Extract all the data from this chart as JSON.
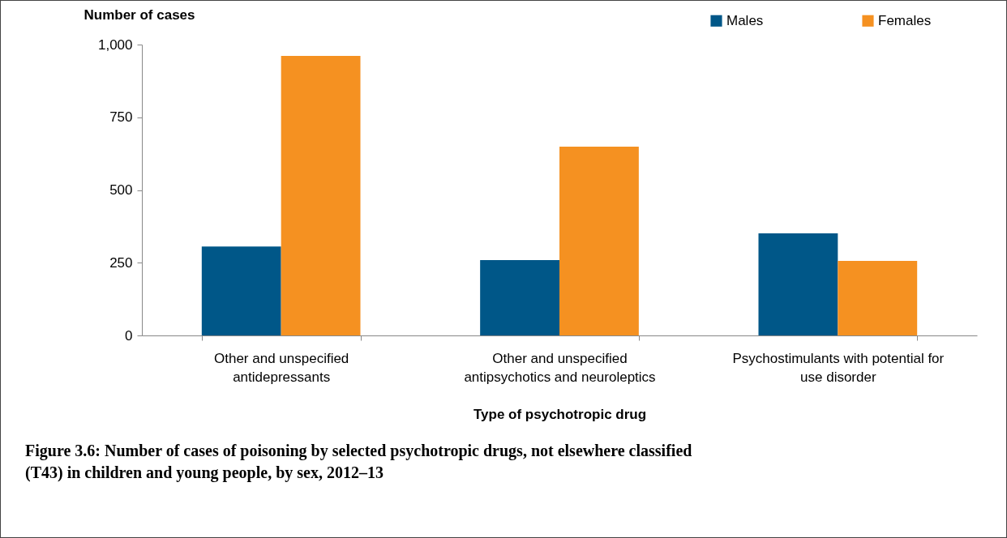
{
  "chart_data": {
    "type": "bar",
    "title": "Figure 3.6: Number of cases of poisoning by selected psychotropic drugs, not elsewhere classified (T43) in children and young people, by sex, 2012–13",
    "xlabel": "Type of psychotropic drug",
    "ylabel": "Number of cases",
    "categories": [
      "Other and unspecified antidepressants",
      "Other and unspecified antipsychotics and neuroleptics",
      "Psychostimulants with potential for use disorder"
    ],
    "series": [
      {
        "name": "Males",
        "color": "#005788",
        "values": [
          306,
          259,
          351
        ]
      },
      {
        "name": "Females",
        "color": "#f59121",
        "values": [
          961,
          649,
          256
        ]
      }
    ],
    "ylim": [
      0,
      1000
    ],
    "yticks": [
      0,
      250,
      500,
      750,
      {
        "value": 1000,
        "label": "1,000"
      }
    ],
    "grid": false,
    "legend": "top right"
  }
}
